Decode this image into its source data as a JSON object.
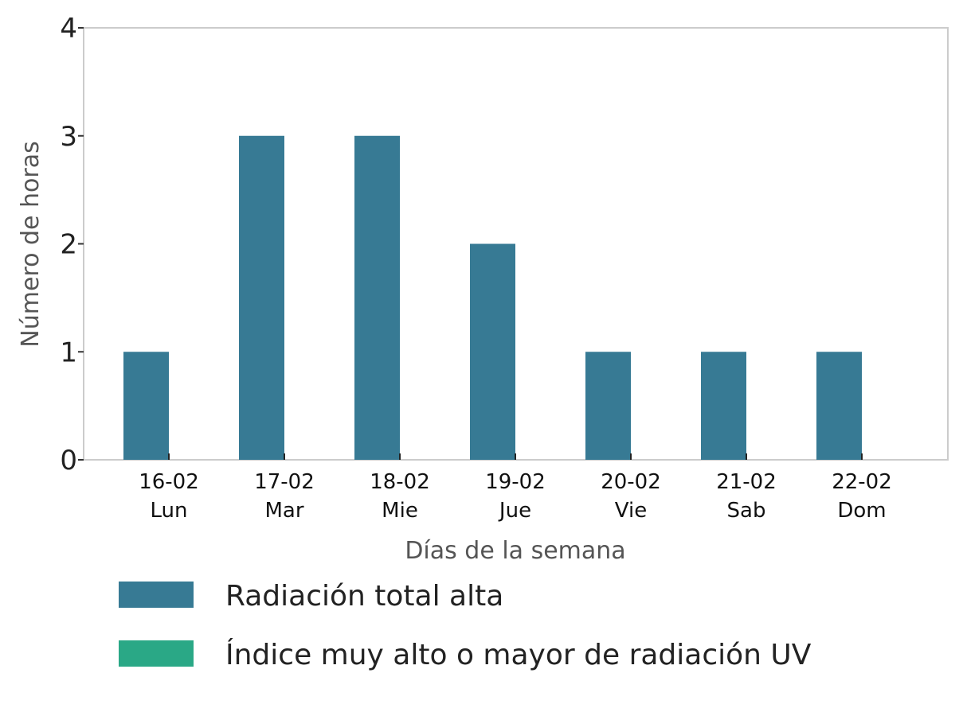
{
  "chart_data": {
    "type": "bar",
    "title": "",
    "xlabel": "Días de la semana",
    "ylabel": "Número de horas",
    "ylim": [
      0,
      4
    ],
    "yticks": [
      0,
      1,
      2,
      3,
      4
    ],
    "grid": false,
    "legend_position": "bottom",
    "categories": [
      {
        "date": "16-02",
        "day": "Lun"
      },
      {
        "date": "17-02",
        "day": "Mar"
      },
      {
        "date": "18-02",
        "day": "Mie"
      },
      {
        "date": "19-02",
        "day": "Jue"
      },
      {
        "date": "20-02",
        "day": "Vie"
      },
      {
        "date": "21-02",
        "day": "Sab"
      },
      {
        "date": "22-02",
        "day": "Dom"
      }
    ],
    "series": [
      {
        "name": "Radiación total alta",
        "color": "#377a94",
        "values": [
          1,
          3,
          3,
          2,
          1,
          1,
          1
        ]
      },
      {
        "name": "Índice muy alto o mayor de radiación UV",
        "color": "#2aa886",
        "values": [
          0,
          0,
          0,
          0,
          0,
          0,
          0
        ]
      }
    ]
  }
}
